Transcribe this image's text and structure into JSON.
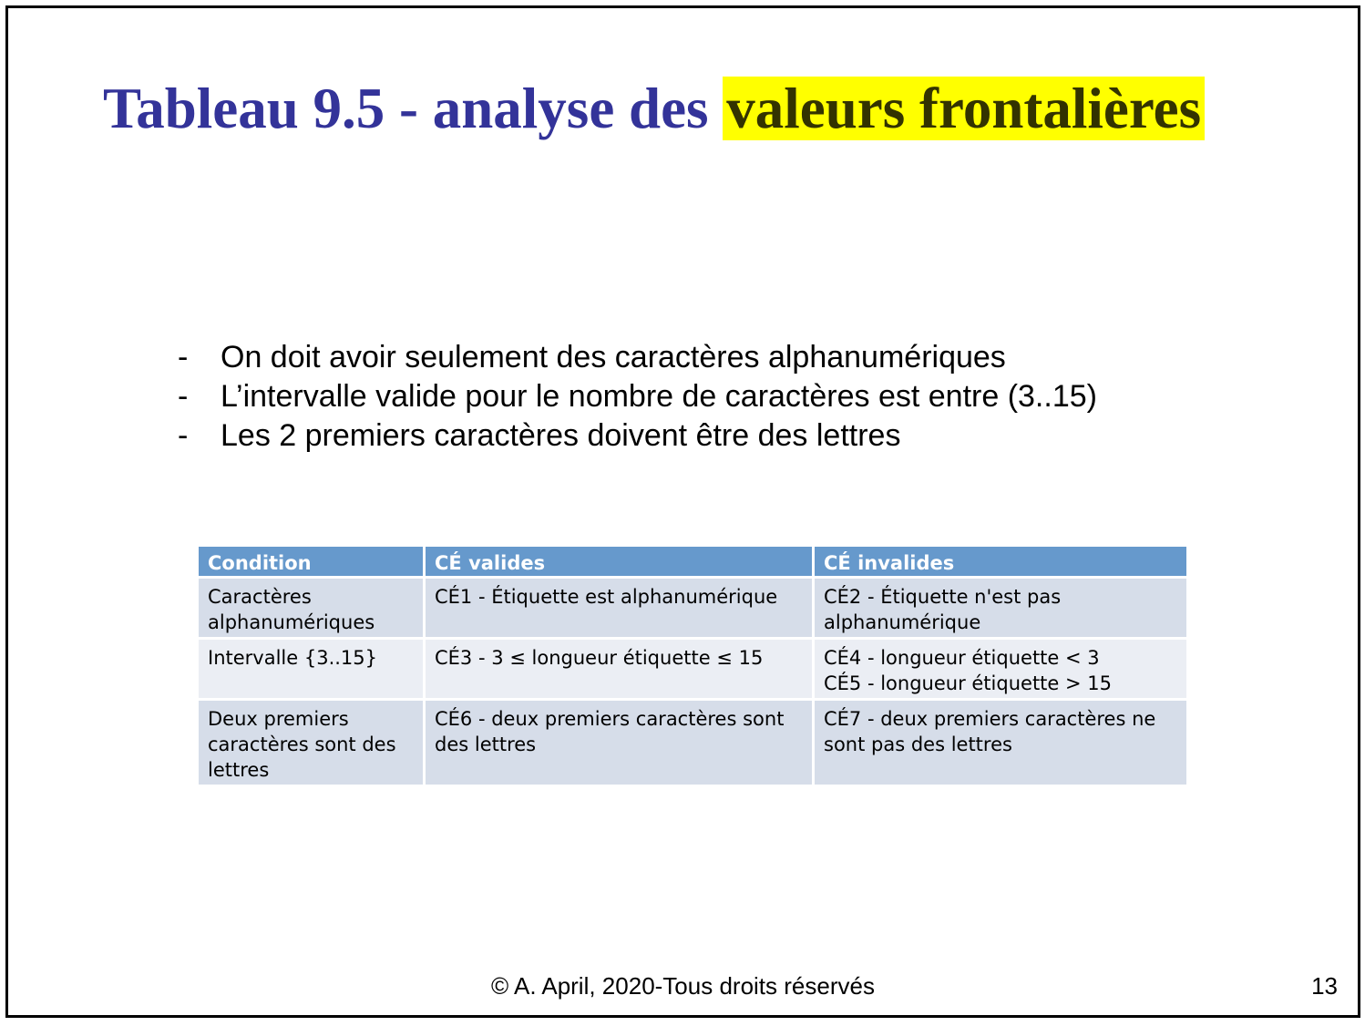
{
  "title": {
    "prefix": "Tableau 9.5 - analyse des ",
    "highlight": "valeurs frontalières",
    "highlight_color": "#ffff00",
    "text_color": "#333399"
  },
  "bullets": {
    "marker": "-",
    "items": [
      "On doit avoir seulement des caractères alphanumériques",
      "L’intervalle valide pour le nombre de caractères est entre (3..15)",
      "Les 2 premiers caractères doivent être des lettres"
    ]
  },
  "table": {
    "header_color": "#6699cc",
    "headers": [
      "Condition",
      "CÉ valides",
      "CÉ invalides"
    ],
    "rows": [
      {
        "condition": [
          "Caractères",
          "alphanumériques"
        ],
        "valid": [
          "CÉ1 - Étiquette est alphanumérique"
        ],
        "invalid": [
          "CÉ2 - Étiquette n'est pas",
          "alphanumérique"
        ]
      },
      {
        "condition": [
          "Intervalle {3..15}"
        ],
        "valid": [
          "CÉ3 - 3 ≤ longueur étiquette ≤ 15"
        ],
        "invalid": [
          "CÉ4 - longueur étiquette < 3",
          "CÉ5 - longueur étiquette > 15"
        ]
      },
      {
        "condition": [
          "Deux premiers",
          "caractères sont des",
          "lettres"
        ],
        "valid": [
          "CÉ6 - deux premiers caractères sont",
          "des lettres"
        ],
        "invalid": [
          "CÉ7 - deux premiers caractères ne",
          "sont pas des lettres"
        ]
      }
    ]
  },
  "footer": {
    "copyright": "© A. April, 2020-Tous droits réservés",
    "page_number": "13"
  }
}
